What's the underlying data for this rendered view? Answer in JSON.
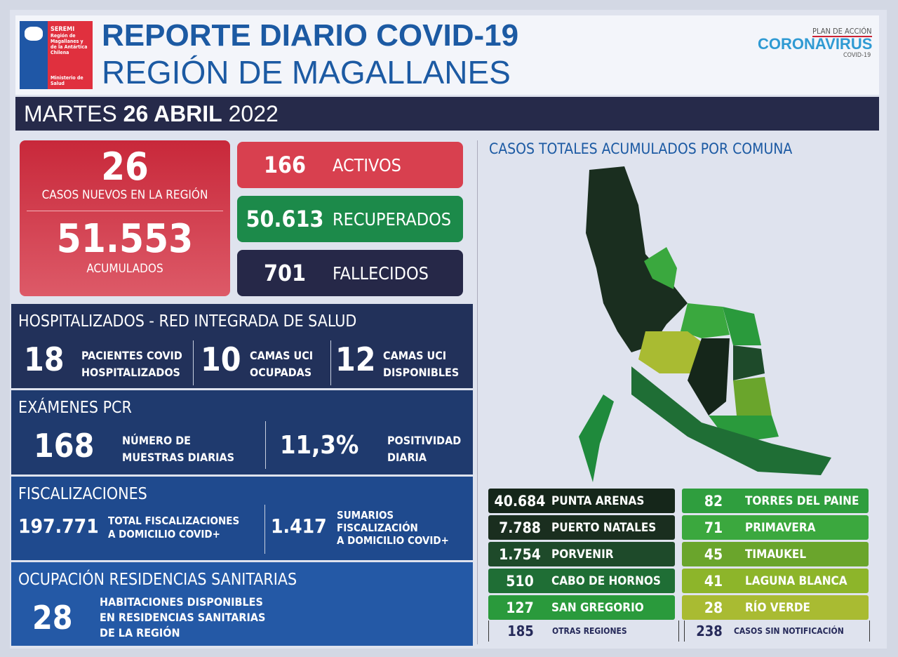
{
  "header": {
    "logo": {
      "seremi": "SEREMI",
      "region": "Región de Magallanes y de la Antártica Chilena",
      "ministry": "Ministerio de Salud"
    },
    "title_line1": "REPORTE DIARIO COVID-19",
    "title_line2": "REGIÓN DE MAGALLANES",
    "plan_label": "PLAN DE ACCIÓN",
    "coronavirus_label": "CORONAVIRUS",
    "covid_label": "COVID-19"
  },
  "date": {
    "weekday": "MARTES",
    "day_month": "26 ABRIL",
    "year": "2022"
  },
  "summary": {
    "new_cases": "26",
    "new_cases_label": "CASOS NUEVOS EN LA REGIÓN",
    "cumulative": "51.553",
    "cumulative_label": "ACUMULADOS",
    "active": "166",
    "active_label": "ACTIVOS",
    "recovered": "50.613",
    "recovered_label": "RECUPERADOS",
    "deceased": "701",
    "deceased_label": "FALLECIDOS"
  },
  "hospital": {
    "title": "HOSPITALIZADOS - RED INTEGRADA DE SALUD",
    "items": [
      {
        "value": "18",
        "l1": "PACIENTES COVID",
        "l2": "HOSPITALIZADOS"
      },
      {
        "value": "10",
        "l1": "CAMAS UCI",
        "l2": "OCUPADAS"
      },
      {
        "value": "12",
        "l1": "CAMAS UCI",
        "l2": "DISPONIBLES"
      }
    ]
  },
  "pcr": {
    "title": "EXÁMENES PCR",
    "samples": "168",
    "samples_l1": "NÚMERO DE",
    "samples_l2": "MUESTRAS DIARIAS",
    "positivity": "11,3%",
    "positivity_l1": "POSITIVIDAD",
    "positivity_l2": "DIARIA"
  },
  "fiscal": {
    "title": "FISCALIZACIONES",
    "total": "197.771",
    "total_l1": "TOTAL FISCALIZACIONES",
    "total_l2": "A DOMICILIO COVID+",
    "sumarios": "1.417",
    "sum_l1": "SUMARIOS",
    "sum_l2": "FISCALIZACIÓN",
    "sum_l3": "A DOMICILIO COVID+"
  },
  "residencias": {
    "title": "OCUPACIÓN RESIDENCIAS SANITARIAS",
    "value": "28",
    "l1": "HABITACIONES DISPONIBLES",
    "l2": "EN RESIDENCIAS SANITARIAS",
    "l3": "DE LA REGIÓN"
  },
  "map": {
    "title": "CASOS TOTALES ACUMULADOS POR COMUNA",
    "left": [
      {
        "value": "40.684",
        "name": "PUNTA ARENAS",
        "color": "#15261a"
      },
      {
        "value": "7.788",
        "name": "PUERTO NATALES",
        "color": "#1a2e1f"
      },
      {
        "value": "1.754",
        "name": "PORVENIR",
        "color": "#1e4a2a"
      },
      {
        "value": "510",
        "name": "CABO DE HORNOS",
        "color": "#1f6e35"
      },
      {
        "value": "127",
        "name": "SAN GREGORIO",
        "color": "#2a9a3c"
      }
    ],
    "right": [
      {
        "value": "82",
        "name": "TORRES DEL PAINE",
        "color": "#2f9e3e"
      },
      {
        "value": "71",
        "name": "PRIMAVERA",
        "color": "#3ba83e"
      },
      {
        "value": "45",
        "name": "TIMAUKEL",
        "color": "#6aa52c"
      },
      {
        "value": "41",
        "name": "LAGUNA BLANCA",
        "color": "#8db52a"
      },
      {
        "value": "28",
        "name": "RÍO VERDE",
        "color": "#a9bb32"
      }
    ],
    "other_regions": "185",
    "other_regions_label": "OTRAS REGIONES",
    "no_notification": "238",
    "no_notification_label": "CASOS SIN NOTIFICACIÓN"
  }
}
